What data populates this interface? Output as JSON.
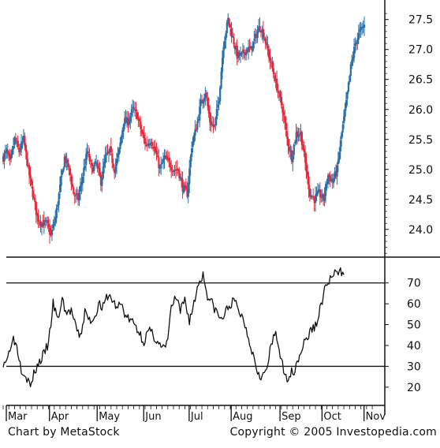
{
  "footer": {
    "left": "Chart by MetaStock",
    "right": "Copyright © 2005 Investopedia.com"
  },
  "colors": {
    "up": "#2a6fa8",
    "down": "#e8283a",
    "line": "#111111",
    "background": "#ffffff"
  },
  "chart_data": [
    {
      "type": "candlestick",
      "title": "",
      "xlabel": "",
      "ylabel": "",
      "ylim": [
        23.55,
        27.72
      ],
      "yticks": [
        "27.5",
        "27.0",
        "26.5",
        "26.0",
        "25.5",
        "25.0",
        "24.5",
        "24.0"
      ],
      "ytick_values": [
        27.5,
        27.0,
        26.5,
        26.0,
        25.5,
        25.0,
        24.5,
        24.0
      ],
      "months": [
        "Mar",
        "Apr",
        "May",
        "Jun",
        "Jul",
        "Aug",
        "Sep",
        "Oct",
        "Nov"
      ],
      "grid": false,
      "close_path": [
        [
          0,
          25.2
        ],
        [
          3,
          25.3
        ],
        [
          6,
          25.1
        ],
        [
          10,
          25.5
        ],
        [
          14,
          25.3
        ],
        [
          18,
          25.5
        ],
        [
          22,
          25.0
        ],
        [
          26,
          24.6
        ],
        [
          30,
          24.2
        ],
        [
          34,
          24.1
        ],
        [
          38,
          24.1
        ],
        [
          42,
          23.9
        ],
        [
          46,
          24.2
        ],
        [
          50,
          24.7
        ],
        [
          54,
          25.2
        ],
        [
          58,
          25.0
        ],
        [
          62,
          24.6
        ],
        [
          66,
          24.5
        ],
        [
          70,
          24.9
        ],
        [
          74,
          25.3
        ],
        [
          78,
          25.0
        ],
        [
          82,
          25.1
        ],
        [
          86,
          24.8
        ],
        [
          90,
          25.2
        ],
        [
          94,
          25.3
        ],
        [
          98,
          25.0
        ],
        [
          102,
          25.3
        ],
        [
          106,
          25.8
        ],
        [
          110,
          25.8
        ],
        [
          114,
          26.0
        ],
        [
          118,
          25.9
        ],
        [
          122,
          25.6
        ],
        [
          126,
          25.4
        ],
        [
          130,
          25.5
        ],
        [
          134,
          25.3
        ],
        [
          138,
          25.0
        ],
        [
          142,
          25.2
        ],
        [
          146,
          25.1
        ],
        [
          150,
          25.0
        ],
        [
          154,
          25.0
        ],
        [
          158,
          24.7
        ],
        [
          162,
          24.6
        ],
        [
          166,
          25.4
        ],
        [
          170,
          25.7
        ],
        [
          174,
          26.1
        ],
        [
          178,
          26.3
        ],
        [
          182,
          25.8
        ],
        [
          186,
          25.7
        ],
        [
          190,
          26.2
        ],
        [
          194,
          27.1
        ],
        [
          198,
          27.5
        ],
        [
          202,
          27.2
        ],
        [
          206,
          26.9
        ],
        [
          210,
          26.9
        ],
        [
          214,
          27.0
        ],
        [
          218,
          27.0
        ],
        [
          222,
          27.2
        ],
        [
          226,
          27.4
        ],
        [
          230,
          27.2
        ],
        [
          234,
          26.9
        ],
        [
          238,
          26.6
        ],
        [
          242,
          26.3
        ],
        [
          246,
          26.0
        ],
        [
          250,
          25.5
        ],
        [
          254,
          25.2
        ],
        [
          258,
          25.6
        ],
        [
          262,
          25.6
        ],
        [
          266,
          25.1
        ],
        [
          270,
          24.6
        ],
        [
          274,
          24.5
        ],
        [
          278,
          24.6
        ],
        [
          282,
          24.5
        ],
        [
          286,
          24.9
        ],
        [
          290,
          24.8
        ],
        [
          294,
          25.0
        ],
        [
          298,
          25.6
        ],
        [
          302,
          26.1
        ],
        [
          306,
          26.7
        ],
        [
          310,
          27.1
        ],
        [
          314,
          27.3
        ],
        [
          318,
          27.4
        ]
      ]
    },
    {
      "type": "line",
      "title": "",
      "xlabel": "",
      "ylabel": "",
      "ylim": [
        12,
        82
      ],
      "yticks": [
        "70",
        "60",
        "50",
        "40",
        "30",
        "20"
      ],
      "ytick_values": [
        70,
        60,
        50,
        40,
        30,
        20
      ],
      "reference_lines": [
        70,
        30
      ],
      "series": [
        {
          "values": [
            [
              0,
              32
            ],
            [
              4,
              34
            ],
            [
              8,
              44
            ],
            [
              12,
              40
            ],
            [
              16,
              29
            ],
            [
              20,
              26
            ],
            [
              24,
              20
            ],
            [
              28,
              28
            ],
            [
              32,
              32
            ],
            [
              36,
              36
            ],
            [
              40,
              41
            ],
            [
              44,
              60
            ],
            [
              48,
              52
            ],
            [
              52,
              62
            ],
            [
              56,
              55
            ],
            [
              60,
              57
            ],
            [
              64,
              48
            ],
            [
              68,
              44
            ],
            [
              72,
              56
            ],
            [
              76,
              52
            ],
            [
              80,
              53
            ],
            [
              84,
              60
            ],
            [
              88,
              58
            ],
            [
              92,
              64
            ],
            [
              96,
              62
            ],
            [
              100,
              58
            ],
            [
              104,
              60
            ],
            [
              108,
              54
            ],
            [
              112,
              52
            ],
            [
              116,
              50
            ],
            [
              120,
              46
            ],
            [
              124,
              42
            ],
            [
              128,
              47
            ],
            [
              132,
              45
            ],
            [
              136,
              42
            ],
            [
              140,
              38
            ],
            [
              144,
              40
            ],
            [
              148,
              58
            ],
            [
              152,
              63
            ],
            [
              156,
              56
            ],
            [
              160,
              62
            ],
            [
              164,
              52
            ],
            [
              168,
              60
            ],
            [
              172,
              70
            ],
            [
              176,
              74
            ],
            [
              180,
              64
            ],
            [
              184,
              60
            ],
            [
              188,
              56
            ],
            [
              192,
              52
            ],
            [
              196,
              56
            ],
            [
              200,
              60
            ],
            [
              204,
              61
            ],
            [
              208,
              56
            ],
            [
              212,
              52
            ],
            [
              216,
              44
            ],
            [
              220,
              36
            ],
            [
              224,
              28
            ],
            [
              228,
              25
            ],
            [
              232,
              28
            ],
            [
              236,
              40
            ],
            [
              240,
              46
            ],
            [
              244,
              36
            ],
            [
              248,
              24
            ],
            [
              252,
              26
            ],
            [
              256,
              28
            ],
            [
              260,
              34
            ],
            [
              264,
              40
            ],
            [
              268,
              44
            ],
            [
              272,
              48
            ],
            [
              276,
              50
            ],
            [
              280,
              60
            ],
            [
              284,
              68
            ],
            [
              288,
              72
            ],
            [
              292,
              74
            ],
            [
              296,
              75
            ],
            [
              300,
              76
            ]
          ]
        }
      ]
    }
  ]
}
